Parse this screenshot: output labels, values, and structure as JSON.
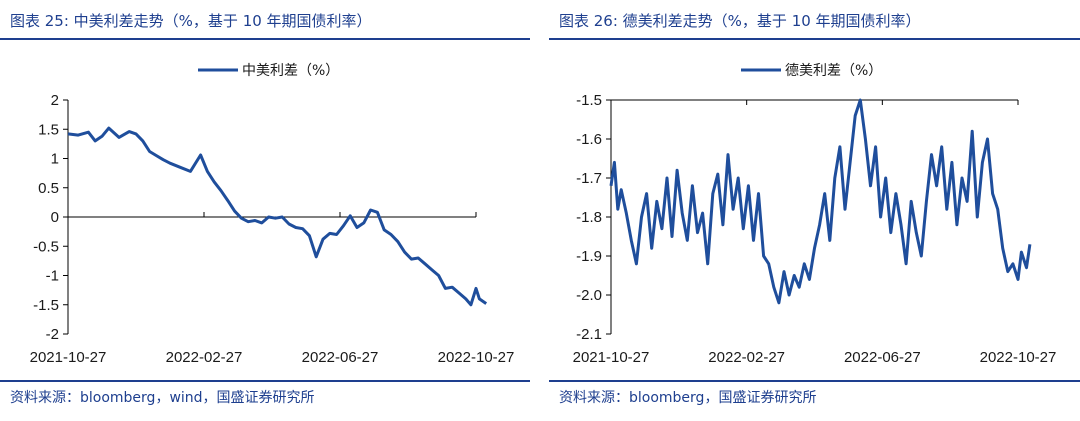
{
  "left_panel": {
    "figure_title": "图表 25:  中美利差走势（%，基于 10 年期国债利率）",
    "source": "资料来源：bloomberg，wind，国盛证券研究所"
  },
  "right_panel": {
    "figure_title": "图表 26:  德美利差走势（%，基于 10 年期国债利率）",
    "source": "资料来源：bloomberg，国盛证券研究所"
  },
  "chart_data": [
    {
      "type": "line",
      "title": "",
      "legend": "中美利差（%）",
      "legend_position": "top-center",
      "color": "#1f4e9c",
      "ylim": [
        -2,
        2
      ],
      "yticks": [
        2,
        1.5,
        1,
        0.5,
        0,
        -0.5,
        -1,
        -1.5,
        -2
      ],
      "yticklabels": [
        "2",
        "1.5",
        "1",
        "0.5",
        "0",
        "-0.5",
        "-1",
        "-1.5",
        "-2"
      ],
      "xticklabels": [
        "2021-10-27",
        "2022-02-27",
        "2022-06-27",
        "2022-10-27"
      ],
      "x_tick_positions": [
        0,
        4,
        8,
        12
      ],
      "x_max": 12,
      "grid": false,
      "x": [
        0,
        0.3,
        0.6,
        0.8,
        1.0,
        1.2,
        1.5,
        1.8,
        2.0,
        2.2,
        2.4,
        2.6,
        2.8,
        3.0,
        3.3,
        3.6,
        3.9,
        4.1,
        4.3,
        4.5,
        4.7,
        4.9,
        5.1,
        5.3,
        5.5,
        5.7,
        5.9,
        6.1,
        6.3,
        6.5,
        6.7,
        6.9,
        7.1,
        7.3,
        7.5,
        7.7,
        7.9,
        8.1,
        8.3,
        8.5,
        8.7,
        8.9,
        9.1,
        9.3,
        9.5,
        9.7,
        9.9,
        10.1,
        10.3,
        10.5,
        10.7,
        10.9,
        11.1,
        11.3,
        11.5,
        11.7,
        11.85,
        12.0,
        12.1,
        12.3
      ],
      "values": [
        1.42,
        1.4,
        1.45,
        1.3,
        1.38,
        1.52,
        1.36,
        1.46,
        1.42,
        1.3,
        1.12,
        1.05,
        0.98,
        0.92,
        0.85,
        0.78,
        1.06,
        0.78,
        0.6,
        0.45,
        0.28,
        0.1,
        -0.02,
        -0.08,
        -0.06,
        -0.1,
        0.0,
        -0.02,
        0.0,
        -0.12,
        -0.18,
        -0.2,
        -0.32,
        -0.68,
        -0.38,
        -0.28,
        -0.3,
        -0.15,
        0.02,
        -0.18,
        -0.1,
        0.12,
        0.08,
        -0.22,
        -0.3,
        -0.42,
        -0.6,
        -0.72,
        -0.7,
        -0.8,
        -0.9,
        -1.0,
        -1.22,
        -1.2,
        -1.3,
        -1.4,
        -1.5,
        -1.22,
        -1.4,
        -1.48
      ]
    },
    {
      "type": "line",
      "title": "",
      "legend": "德美利差（%）",
      "legend_position": "top-center",
      "color": "#1f4e9c",
      "ylim": [
        -2.1,
        -1.5
      ],
      "yticks": [
        -1.5,
        -1.6,
        -1.7,
        -1.8,
        -1.9,
        -2.0,
        -2.1
      ],
      "yticklabels": [
        "-1.5",
        "-1.6",
        "-1.7",
        "-1.8",
        "-1.9",
        "-2.0",
        "-2.1"
      ],
      "xticklabels": [
        "2021-10-27",
        "2022-02-27",
        "2022-06-27",
        "2022-10-27"
      ],
      "x_tick_positions": [
        0,
        4,
        8,
        12
      ],
      "x_max": 12,
      "grid": false,
      "x": [
        0,
        0.1,
        0.2,
        0.3,
        0.45,
        0.6,
        0.75,
        0.9,
        1.05,
        1.2,
        1.35,
        1.5,
        1.65,
        1.8,
        1.95,
        2.1,
        2.25,
        2.4,
        2.55,
        2.7,
        2.85,
        3.0,
        3.15,
        3.3,
        3.45,
        3.6,
        3.75,
        3.9,
        4.05,
        4.2,
        4.35,
        4.5,
        4.65,
        4.8,
        4.95,
        5.1,
        5.25,
        5.4,
        5.55,
        5.7,
        5.85,
        6.0,
        6.15,
        6.3,
        6.45,
        6.6,
        6.75,
        6.9,
        7.05,
        7.2,
        7.35,
        7.5,
        7.65,
        7.8,
        7.95,
        8.1,
        8.25,
        8.4,
        8.55,
        8.7,
        8.85,
        9.0,
        9.15,
        9.3,
        9.45,
        9.6,
        9.75,
        9.9,
        10.05,
        10.2,
        10.35,
        10.5,
        10.65,
        10.8,
        10.95,
        11.1,
        11.25,
        11.4,
        11.55,
        11.7,
        11.85,
        12.0,
        12.1,
        12.25,
        12.35
      ],
      "values": [
        -1.72,
        -1.66,
        -1.78,
        -1.73,
        -1.79,
        -1.86,
        -1.92,
        -1.8,
        -1.74,
        -1.88,
        -1.76,
        -1.83,
        -1.7,
        -1.85,
        -1.68,
        -1.79,
        -1.86,
        -1.72,
        -1.84,
        -1.79,
        -1.92,
        -1.74,
        -1.69,
        -1.82,
        -1.64,
        -1.78,
        -1.7,
        -1.83,
        -1.72,
        -1.86,
        -1.74,
        -1.9,
        -1.92,
        -1.98,
        -2.02,
        -1.94,
        -2.0,
        -1.95,
        -1.98,
        -1.92,
        -1.96,
        -1.88,
        -1.82,
        -1.74,
        -1.86,
        -1.7,
        -1.62,
        -1.78,
        -1.66,
        -1.54,
        -1.5,
        -1.6,
        -1.72,
        -1.62,
        -1.8,
        -1.7,
        -1.84,
        -1.74,
        -1.82,
        -1.92,
        -1.76,
        -1.84,
        -1.9,
        -1.76,
        -1.64,
        -1.72,
        -1.62,
        -1.78,
        -1.66,
        -1.82,
        -1.7,
        -1.76,
        -1.58,
        -1.8,
        -1.66,
        -1.6,
        -1.74,
        -1.78,
        -1.88,
        -1.94,
        -1.92,
        -1.96,
        -1.89,
        -1.93,
        -1.87
      ]
    }
  ]
}
